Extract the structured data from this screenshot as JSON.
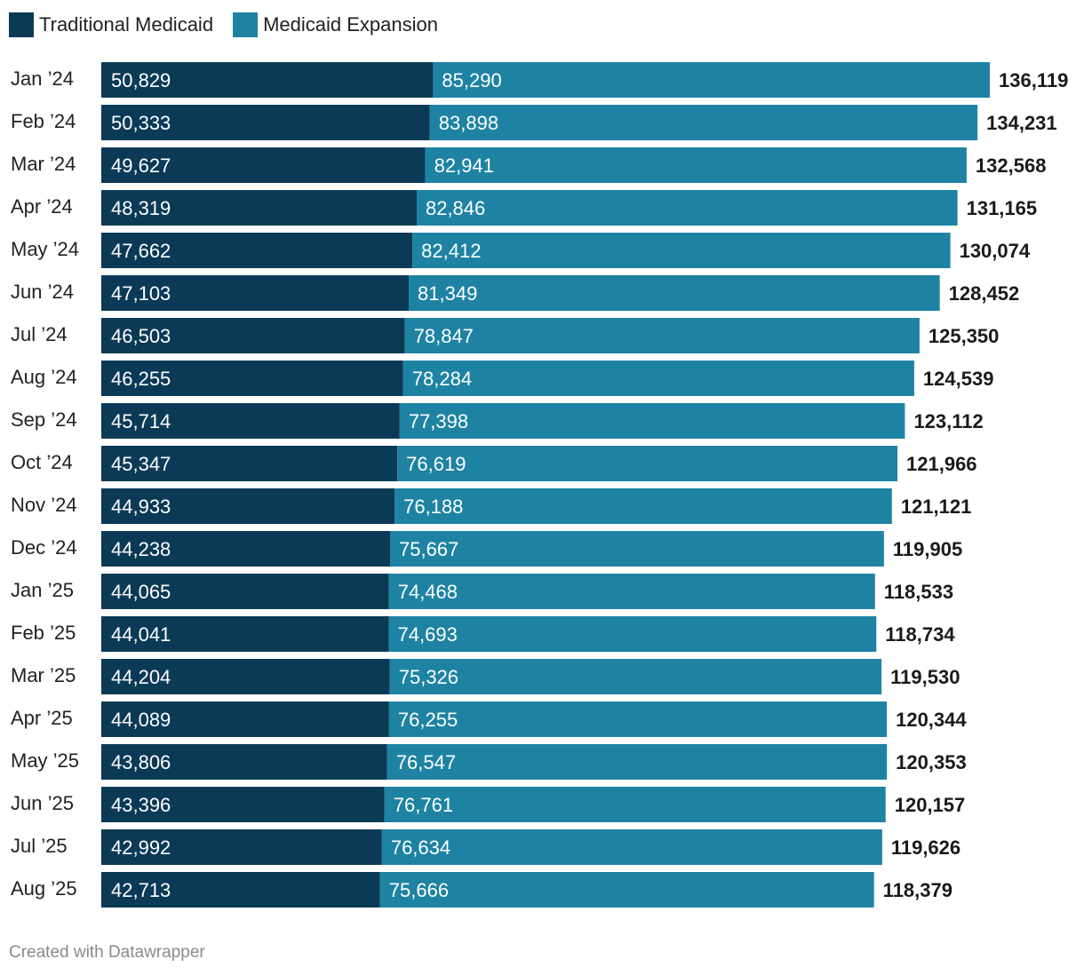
{
  "legend": {
    "traditional": "Traditional Medicaid",
    "expansion": "Medicaid Expansion"
  },
  "colors": {
    "traditional": "#0b3a57",
    "expansion": "#1e83a3",
    "total_label": "#1a1a1a"
  },
  "footer": "Created with Datawrapper",
  "chart_data": {
    "type": "bar",
    "orientation": "horizontal",
    "stacked": true,
    "categories": [
      "Jan ’24",
      "Feb ’24",
      "Mar ’24",
      "Apr ’24",
      "May ’24",
      "Jun ’24",
      "Jul ’24",
      "Aug ’24",
      "Sep ’24",
      "Oct ’24",
      "Nov ’24",
      "Dec ’24",
      "Jan ’25",
      "Feb ’25",
      "Mar ’25",
      "Apr ’25",
      "May ’25",
      "Jun ’25",
      "Jul ’25",
      "Aug ’25"
    ],
    "series": [
      {
        "name": "Traditional Medicaid",
        "values": [
          "50,829",
          "50,333",
          "49,627",
          "48,319",
          "47,662",
          "47,103",
          "46,503",
          "46,255",
          "45,714",
          "45,347",
          "44,933",
          "44,238",
          "44,065",
          "44,041",
          "44,204",
          "44,089",
          "43,806",
          "43,396",
          "42,992",
          "42,713"
        ]
      },
      {
        "name": "Medicaid Expansion",
        "values": [
          "85,290",
          "83,898",
          "82,941",
          "82,846",
          "82,412",
          "81,349",
          "78,847",
          "78,284",
          "77,398",
          "76,619",
          "76,188",
          "75,667",
          "74,468",
          "74,693",
          "75,326",
          "76,255",
          "76,547",
          "76,761",
          "76,634",
          "75,666"
        ]
      }
    ],
    "totals": [
      "136,119",
      "134,231",
      "132,568",
      "131,165",
      "130,074",
      "128,452",
      "125,350",
      "124,539",
      "123,112",
      "121,966",
      "121,121",
      "119,905",
      "118,533",
      "118,734",
      "119,530",
      "120,344",
      "120,353",
      "120,157",
      "119,626",
      "118,379"
    ],
    "xlim": [
      0,
      140000
    ],
    "grid": false,
    "legend_position": "top-left"
  }
}
